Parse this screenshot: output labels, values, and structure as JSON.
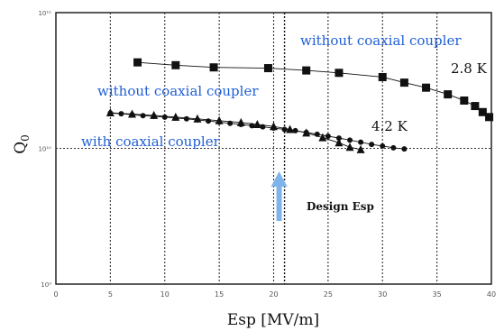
{
  "chart_data": {
    "type": "scatter",
    "xlabel": "Esp [MV/m]",
    "ylabel": "Q",
    "ylabel_sub": "0",
    "xlim": [
      0,
      40
    ],
    "x_ticks": [
      0,
      5,
      10,
      15,
      20,
      25,
      30,
      35,
      40
    ],
    "y_scale": "log",
    "y_ticks": [
      {
        "decade": 9,
        "label": "10⁹"
      },
      {
        "decade": 10,
        "label": "10¹⁰"
      },
      {
        "decade": 11,
        "label": "10¹¹"
      }
    ],
    "ylim": [
      1000000000.0,
      100000000000.0
    ],
    "grid": true,
    "series": [
      {
        "name": "without coaxial coupler 2.8 K",
        "marker": "square",
        "line": true,
        "x": [
          7.5,
          11,
          14.5,
          19.5,
          23,
          26,
          30,
          32,
          34,
          36,
          37.5,
          38.5,
          39.2,
          39.8
        ],
        "y": [
          43000000000.0,
          41000000000.0,
          39500000000.0,
          39000000000.0,
          37500000000.0,
          36000000000.0,
          33500000000.0,
          30500000000.0,
          28000000000.0,
          25000000000.0,
          22500000000.0,
          20500000000.0,
          18500000000.0,
          17000000000.0
        ]
      },
      {
        "name": "without coaxial coupler 4.2 K",
        "marker": "circle",
        "line": true,
        "x": [
          5,
          6,
          7,
          8,
          9,
          10,
          11,
          12,
          13,
          14,
          15,
          16,
          17,
          18,
          19,
          20,
          21,
          22,
          23,
          24,
          25,
          26,
          27,
          28,
          29,
          30,
          31,
          32
        ],
        "y": [
          18200000000.0,
          18000000000.0,
          17700000000.0,
          17400000000.0,
          17200000000.0,
          17000000000.0,
          16700000000.0,
          16500000000.0,
          16200000000.0,
          15900000000.0,
          15600000000.0,
          15300000000.0,
          15000000000.0,
          14700000000.0,
          14400000000.0,
          14100000000.0,
          13800000000.0,
          13500000000.0,
          13100000000.0,
          12700000000.0,
          12300000000.0,
          11900000000.0,
          11500000000.0,
          11100000000.0,
          10700000000.0,
          10400000000.0,
          10100000000.0,
          9900000000.0
        ]
      },
      {
        "name": "with coaxial coupler",
        "marker": "triangle",
        "line": true,
        "x": [
          5,
          7,
          9,
          11,
          13,
          15,
          17,
          18.5,
          20,
          21.5,
          23,
          24.5,
          26,
          27,
          28
        ],
        "y": [
          18300000000.0,
          17900000000.0,
          17500000000.0,
          17000000000.0,
          16500000000.0,
          16000000000.0,
          15500000000.0,
          15000000000.0,
          14500000000.0,
          13800000000.0,
          13000000000.0,
          12000000000.0,
          11000000000.0,
          10200000000.0,
          9800000000.0
        ]
      }
    ],
    "annotations": {
      "top_blue": "without coaxial coupler",
      "mid_blue": "without coaxial coupler",
      "low_blue": "with coaxial coupler",
      "temp_high": "2.8 K",
      "temp_low": "4.2 K",
      "design_label": "Design Esp",
      "design_x": 21
    },
    "colors": {
      "annotation_blue": "#1f5fd6",
      "arrow_blue": "#7fb4ea",
      "data": "#111111"
    }
  }
}
